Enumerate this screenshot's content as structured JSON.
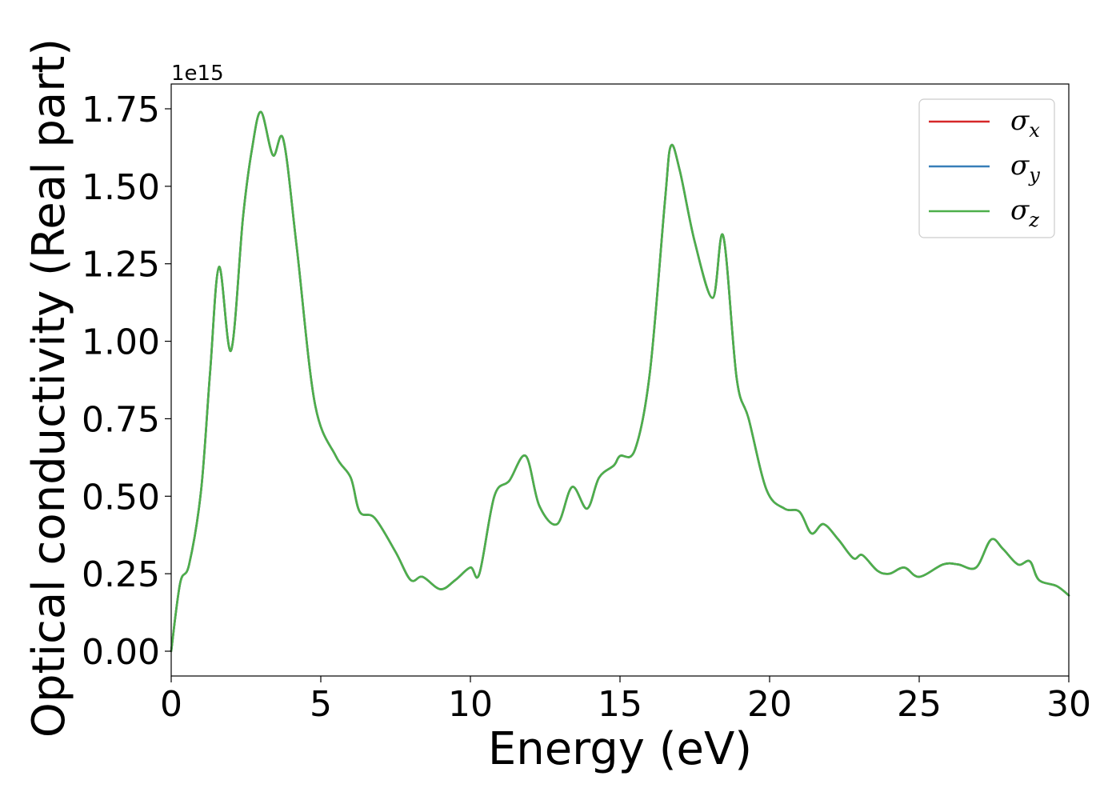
{
  "chart_data": {
    "type": "line",
    "title": "",
    "xlabel": "Energy (eV)",
    "ylabel": "Optical conductivity (Real part)",
    "y_offset_text": "1e15",
    "xlim": [
      0,
      30
    ],
    "ylim": [
      -0.08,
      1.83
    ],
    "x_ticks": [
      0,
      5,
      10,
      15,
      20,
      25,
      30
    ],
    "x_tick_labels": [
      "0",
      "5",
      "10",
      "15",
      "20",
      "25",
      "30"
    ],
    "y_ticks": [
      0,
      0.25,
      0.5,
      0.75,
      1.0,
      1.25,
      1.5,
      1.75
    ],
    "y_tick_labels": [
      "0.00",
      "0.25",
      "0.50",
      "0.75",
      "1.00",
      "1.25",
      "1.50",
      "1.75"
    ],
    "grid": false,
    "legend_position": "top-right",
    "x": [
      0,
      0.3,
      0.6,
      1.0,
      1.3,
      1.6,
      2.0,
      2.4,
      2.7,
      3.0,
      3.4,
      3.75,
      4.2,
      4.8,
      5.5,
      6.0,
      6.3,
      6.8,
      7.5,
      8.0,
      8.4,
      9.0,
      9.5,
      10.0,
      10.3,
      10.8,
      11.3,
      11.85,
      12.3,
      12.9,
      13.4,
      13.9,
      14.3,
      14.8,
      15.0,
      15.5,
      16.0,
      16.5,
      16.7,
      17.0,
      17.5,
      18.1,
      18.45,
      18.9,
      19.3,
      19.9,
      20.5,
      21.0,
      21.4,
      21.8,
      22.3,
      22.8,
      23.1,
      23.6,
      24.0,
      24.5,
      25.0,
      25.8,
      26.3,
      26.9,
      27.4,
      27.8,
      28.3,
      28.7,
      29.0,
      29.6,
      30.0
    ],
    "series": [
      {
        "name": "σx",
        "color": "#d62728",
        "values": [
          0,
          0.22,
          0.28,
          0.52,
          0.9,
          1.24,
          0.97,
          1.4,
          1.62,
          1.74,
          1.6,
          1.65,
          1.3,
          0.8,
          0.63,
          0.56,
          0.45,
          0.43,
          0.32,
          0.23,
          0.24,
          0.2,
          0.23,
          0.27,
          0.25,
          0.5,
          0.55,
          0.63,
          0.47,
          0.41,
          0.53,
          0.46,
          0.56,
          0.6,
          0.63,
          0.65,
          0.9,
          1.45,
          1.63,
          1.55,
          1.32,
          1.14,
          1.34,
          0.88,
          0.75,
          0.52,
          0.46,
          0.45,
          0.38,
          0.41,
          0.36,
          0.3,
          0.31,
          0.26,
          0.25,
          0.27,
          0.24,
          0.28,
          0.28,
          0.27,
          0.36,
          0.33,
          0.28,
          0.29,
          0.23,
          0.21,
          0.18
        ]
      },
      {
        "name": "σy",
        "color": "#377eb8",
        "values": [
          0,
          0.22,
          0.28,
          0.52,
          0.9,
          1.24,
          0.97,
          1.4,
          1.62,
          1.74,
          1.6,
          1.65,
          1.3,
          0.8,
          0.63,
          0.56,
          0.45,
          0.43,
          0.32,
          0.23,
          0.24,
          0.2,
          0.23,
          0.27,
          0.25,
          0.5,
          0.55,
          0.63,
          0.47,
          0.41,
          0.53,
          0.46,
          0.56,
          0.6,
          0.63,
          0.65,
          0.9,
          1.45,
          1.63,
          1.55,
          1.32,
          1.14,
          1.34,
          0.88,
          0.75,
          0.52,
          0.46,
          0.45,
          0.38,
          0.41,
          0.36,
          0.3,
          0.31,
          0.26,
          0.25,
          0.27,
          0.24,
          0.28,
          0.28,
          0.27,
          0.36,
          0.33,
          0.28,
          0.29,
          0.23,
          0.21,
          0.18
        ]
      },
      {
        "name": "σz",
        "color": "#4daf4a",
        "values": [
          0,
          0.22,
          0.28,
          0.52,
          0.9,
          1.24,
          0.97,
          1.4,
          1.62,
          1.74,
          1.6,
          1.65,
          1.3,
          0.8,
          0.63,
          0.56,
          0.45,
          0.43,
          0.32,
          0.23,
          0.24,
          0.2,
          0.23,
          0.27,
          0.25,
          0.5,
          0.55,
          0.63,
          0.47,
          0.41,
          0.53,
          0.46,
          0.56,
          0.6,
          0.63,
          0.65,
          0.9,
          1.45,
          1.63,
          1.55,
          1.32,
          1.14,
          1.34,
          0.88,
          0.75,
          0.52,
          0.46,
          0.45,
          0.38,
          0.41,
          0.36,
          0.3,
          0.31,
          0.26,
          0.25,
          0.27,
          0.24,
          0.28,
          0.28,
          0.27,
          0.36,
          0.33,
          0.28,
          0.29,
          0.23,
          0.21,
          0.18
        ]
      }
    ],
    "legend": [
      {
        "symbol": "σ",
        "sub": "x",
        "color": "#d62728"
      },
      {
        "symbol": "σ",
        "sub": "y",
        "color": "#377eb8"
      },
      {
        "symbol": "σ",
        "sub": "z",
        "color": "#4daf4a"
      }
    ]
  }
}
